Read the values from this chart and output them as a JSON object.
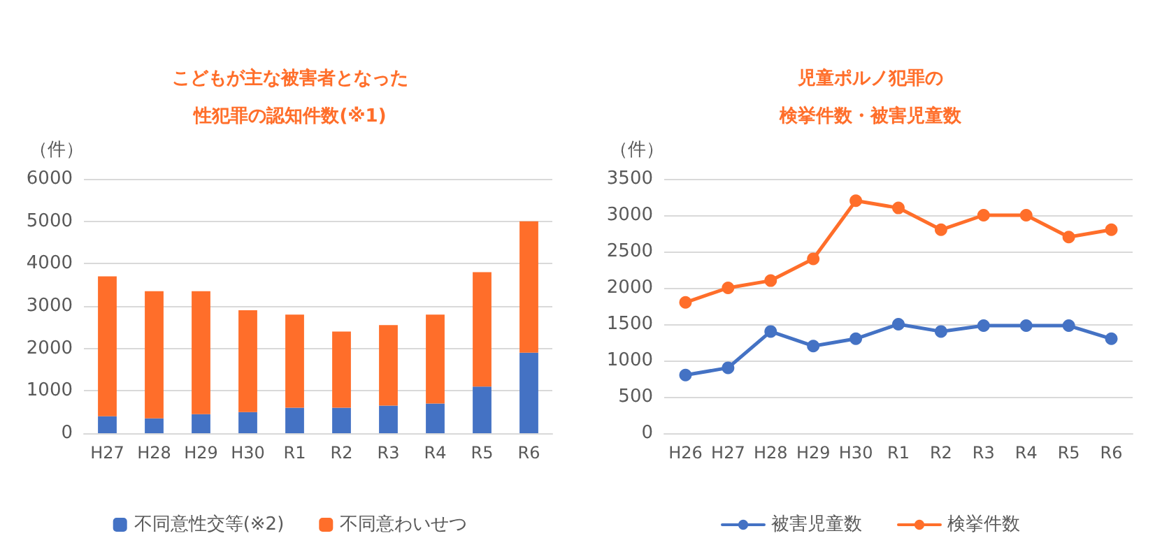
{
  "chart_data": [
    {
      "type": "bar",
      "title": "こどもが主な被害者となった",
      "subtitle": "性犯罪の認知件数(※1)",
      "ylabel": "（件）",
      "categories": [
        "H27",
        "H28",
        "H29",
        "H30",
        "R1",
        "R2",
        "R3",
        "R4",
        "R5",
        "R6"
      ],
      "stacked": true,
      "series": [
        {
          "name": "不同意性交等(※2)",
          "color": "#4472c4",
          "values": [
            400,
            350,
            450,
            500,
            600,
            600,
            650,
            700,
            1100,
            1900
          ]
        },
        {
          "name": "不同意わいせつ",
          "color": "#ff6e2a",
          "values": [
            3300,
            3000,
            2900,
            2400,
            2200,
            1800,
            1900,
            2100,
            2700,
            3100
          ]
        }
      ],
      "ylim": [
        0,
        6000
      ],
      "yticks": [
        0,
        1000,
        2000,
        3000,
        4000,
        5000,
        6000
      ],
      "grid": "y",
      "legend": "bottom"
    },
    {
      "type": "line",
      "title": "児童ポルノ犯罪の",
      "subtitle": "検挙件数・被害児童数",
      "ylabel": "（件）",
      "categories": [
        "H26",
        "H27",
        "H28",
        "H29",
        "H30",
        "R1",
        "R2",
        "R3",
        "R4",
        "R5",
        "R6"
      ],
      "series": [
        {
          "name": "被害児童数",
          "color": "#4472c4",
          "values": [
            800,
            900,
            1400,
            1200,
            1300,
            1500,
            1400,
            1480,
            1480,
            1480,
            1300
          ]
        },
        {
          "name": "検挙件数",
          "color": "#ff6e2a",
          "values": [
            1800,
            2000,
            2100,
            2400,
            3200,
            3100,
            2800,
            3000,
            3000,
            2700,
            2800
          ]
        }
      ],
      "ylim": [
        0,
        3500
      ],
      "yticks": [
        0,
        500,
        1000,
        1500,
        2000,
        2500,
        3000,
        3500
      ],
      "grid": "y",
      "legend": "bottom",
      "marker": "circle",
      "line_style": "solid"
    }
  ]
}
